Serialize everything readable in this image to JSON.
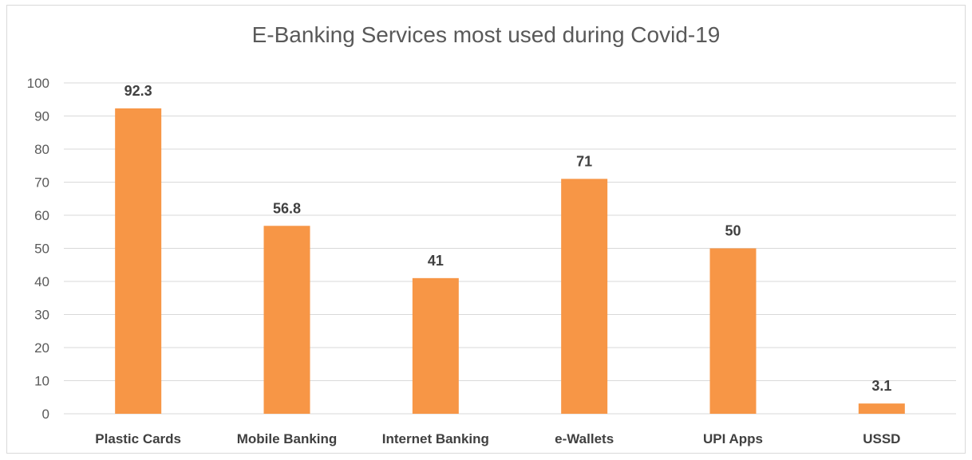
{
  "chart_data": {
    "type": "bar",
    "title": "E-Banking Services most used during Covid-19",
    "xlabel": "",
    "ylabel": "",
    "categories": [
      "Plastic Cards",
      "Mobile Banking",
      "Internet Banking",
      "e-Wallets",
      "UPI Apps",
      "USSD"
    ],
    "values": [
      92.3,
      56.8,
      41,
      71,
      50,
      3.1
    ],
    "data_labels": [
      "92.3",
      "56.8",
      "41",
      "71",
      "50",
      "3.1"
    ],
    "ylim": [
      0,
      100
    ],
    "yticks": [
      0,
      10,
      20,
      30,
      40,
      50,
      60,
      70,
      80,
      90,
      100
    ],
    "grid": true,
    "legend": "none",
    "colors": {
      "bar": "#f79646",
      "grid": "#d9d9d9",
      "axis_text": "#595959",
      "label_text": "#404040"
    }
  }
}
